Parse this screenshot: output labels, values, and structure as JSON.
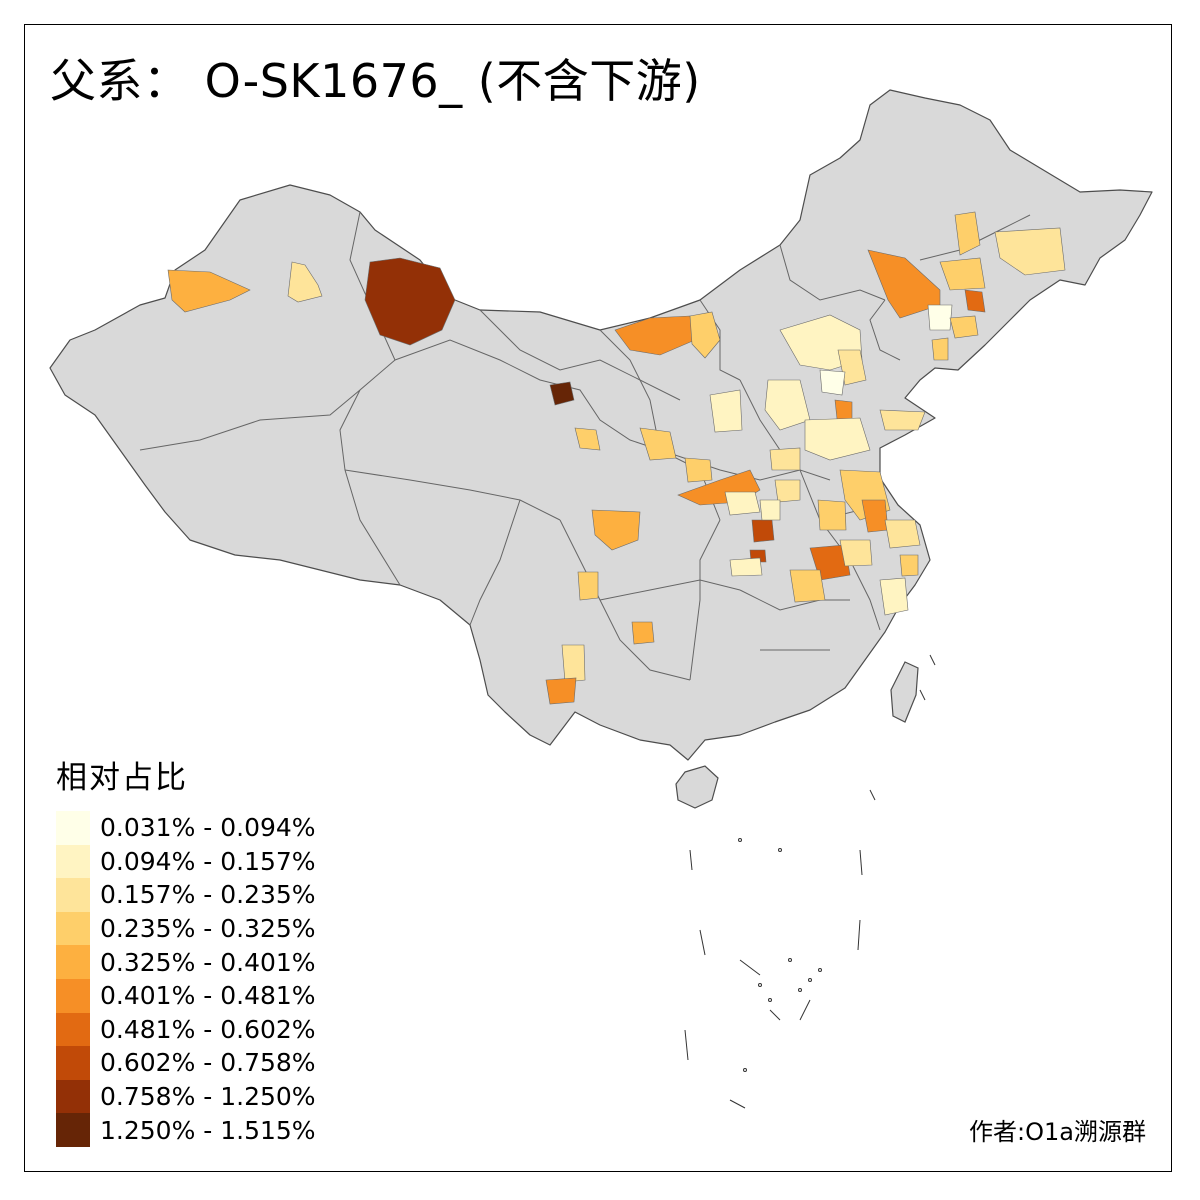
{
  "title": "父系： O-SK1676_ (不含下游)",
  "legend": {
    "title": "相对占比",
    "items": [
      {
        "label": "0.031% - 0.094%",
        "color": "#FFFFE8"
      },
      {
        "label": "0.094% - 0.157%",
        "color": "#FFF4C2"
      },
      {
        "label": "0.157% - 0.235%",
        "color": "#FEE49A"
      },
      {
        "label": "0.235% - 0.325%",
        "color": "#FECF6A"
      },
      {
        "label": "0.325% - 0.401%",
        "color": "#FDB040"
      },
      {
        "label": "0.401% - 0.481%",
        "color": "#F68F26"
      },
      {
        "label": "0.481% - 0.602%",
        "color": "#E26A12"
      },
      {
        "label": "0.602% - 0.758%",
        "color": "#C14A08"
      },
      {
        "label": "0.758% - 1.250%",
        "color": "#933006"
      },
      {
        "label": "1.250% - 1.515%",
        "color": "#662506"
      }
    ]
  },
  "credit": "作者:O1a溯源群",
  "map_colors": {
    "land": "#D9D9D9",
    "border": "#5a5a5a",
    "background": "#FFFFFF"
  }
}
